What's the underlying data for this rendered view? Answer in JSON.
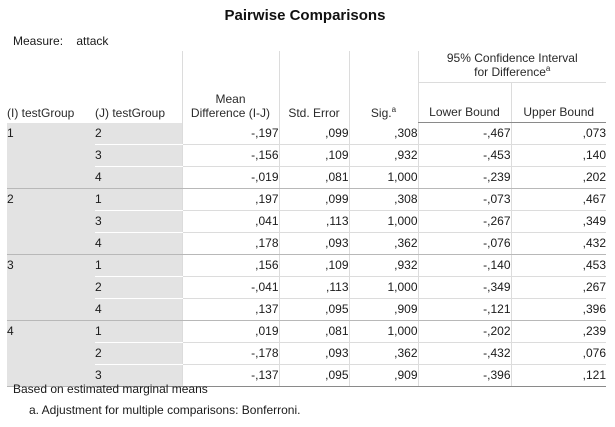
{
  "title": "Pairwise Comparisons",
  "measure": {
    "label": "Measure:",
    "value": "attack"
  },
  "headers": {
    "i_group": "(I) testGroup",
    "j_group": "(J) testGroup",
    "mean_diff": "Mean Difference (I-J)",
    "std_error": "Std. Error",
    "sig": "Sig.",
    "sig_sup": "a",
    "ci": "95% Confidence Interval for Difference",
    "ci_sup": "a",
    "lower": "Lower Bound",
    "upper": "Upper Bound"
  },
  "groups": [
    {
      "i": "1",
      "rows": [
        {
          "j": "2",
          "md": "-,197",
          "se": ",099",
          "sig": ",308",
          "lb": "-,467",
          "ub": ",073"
        },
        {
          "j": "3",
          "md": "-,156",
          "se": ",109",
          "sig": ",932",
          "lb": "-,453",
          "ub": ",140"
        },
        {
          "j": "4",
          "md": "-,019",
          "se": ",081",
          "sig": "1,000",
          "lb": "-,239",
          "ub": ",202"
        }
      ]
    },
    {
      "i": "2",
      "rows": [
        {
          "j": "1",
          "md": ",197",
          "se": ",099",
          "sig": ",308",
          "lb": "-,073",
          "ub": ",467"
        },
        {
          "j": "3",
          "md": ",041",
          "se": ",113",
          "sig": "1,000",
          "lb": "-,267",
          "ub": ",349"
        },
        {
          "j": "4",
          "md": ",178",
          "se": ",093",
          "sig": ",362",
          "lb": "-,076",
          "ub": ",432"
        }
      ]
    },
    {
      "i": "3",
      "rows": [
        {
          "j": "1",
          "md": ",156",
          "se": ",109",
          "sig": ",932",
          "lb": "-,140",
          "ub": ",453"
        },
        {
          "j": "2",
          "md": "-,041",
          "se": ",113",
          "sig": "1,000",
          "lb": "-,349",
          "ub": ",267"
        },
        {
          "j": "4",
          "md": ",137",
          "se": ",095",
          "sig": ",909",
          "lb": "-,121",
          "ub": ",396"
        }
      ]
    },
    {
      "i": "4",
      "rows": [
        {
          "j": "1",
          "md": ",019",
          "se": ",081",
          "sig": "1,000",
          "lb": "-,202",
          "ub": ",239"
        },
        {
          "j": "2",
          "md": "-,178",
          "se": ",093",
          "sig": ",362",
          "lb": "-,432",
          "ub": ",076"
        },
        {
          "j": "3",
          "md": "-,137",
          "se": ",095",
          "sig": ",909",
          "lb": "-,396",
          "ub": ",121"
        }
      ]
    }
  ],
  "footnotes": {
    "based_on": "Based on estimated marginal means",
    "adjustment": "a. Adjustment for multiple comparisons: Bonferroni."
  }
}
